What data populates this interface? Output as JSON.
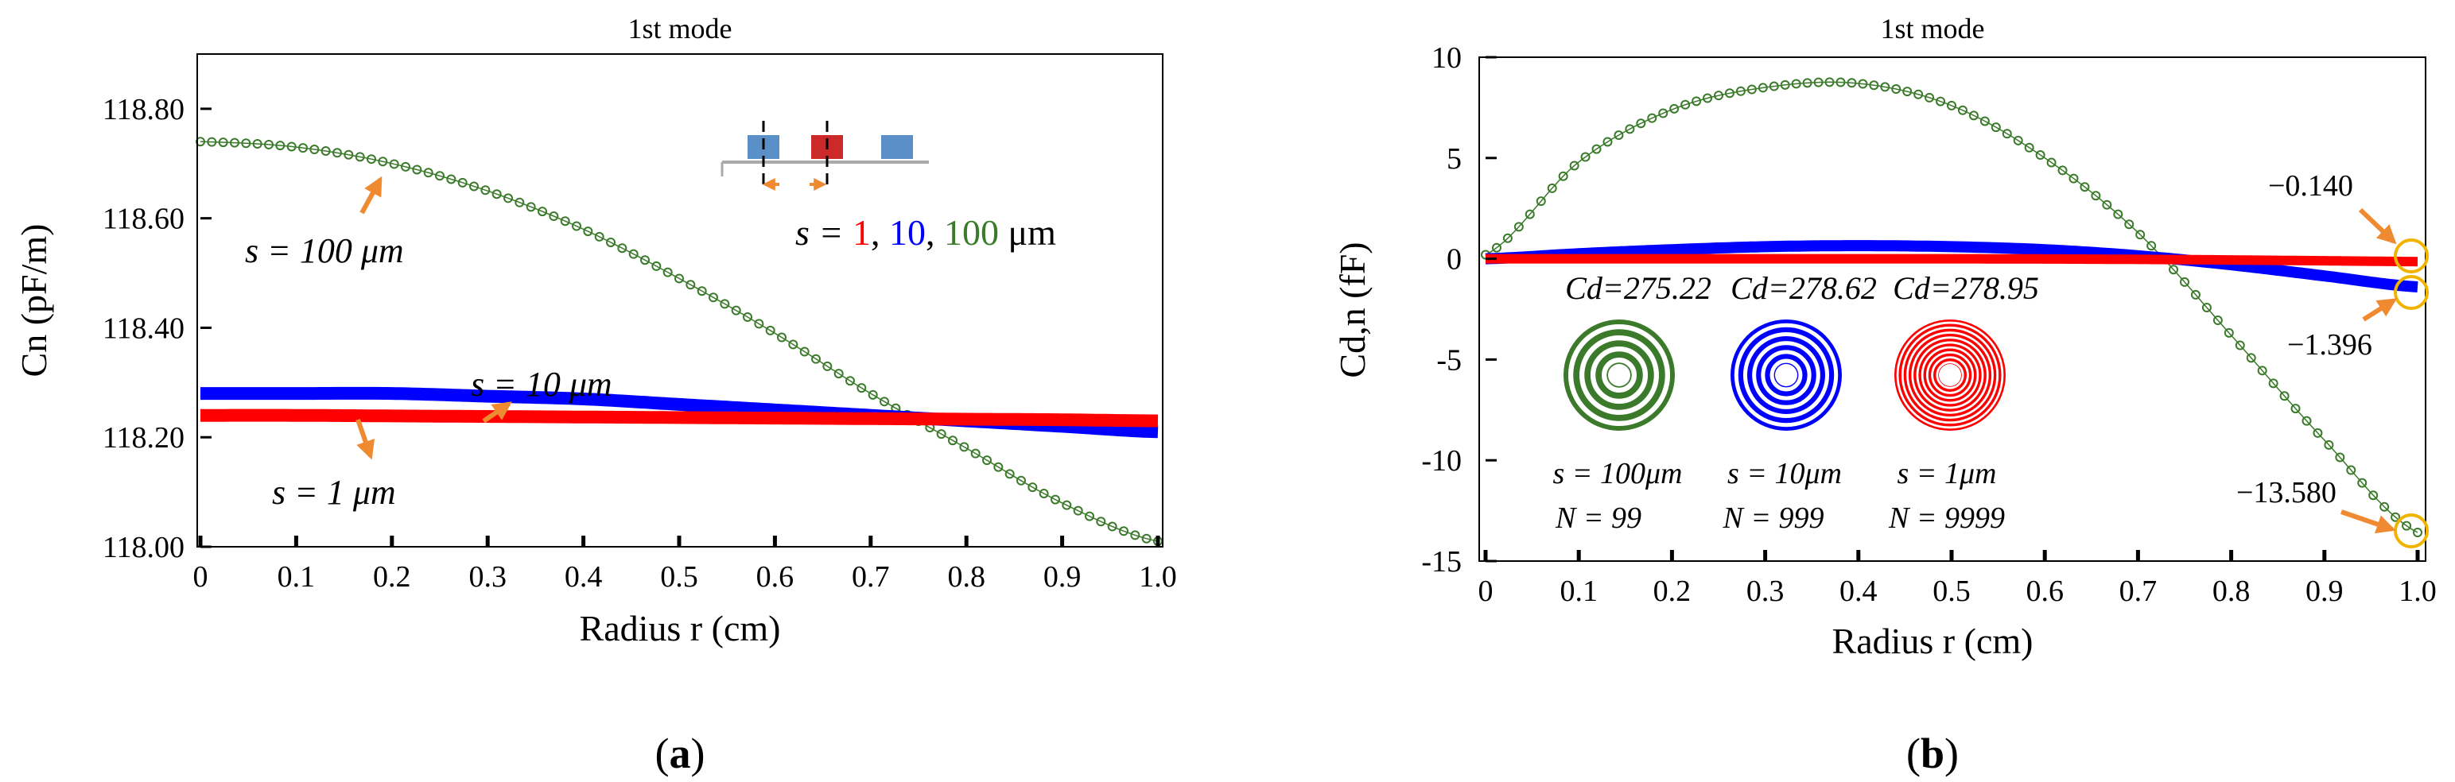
{
  "chart_data": [
    {
      "type": "line",
      "panel_label": "a",
      "title": "1st mode",
      "xlabel": "Radius r (cm)",
      "ylabel": "Cn (pF/m)",
      "xlim": [
        0,
        1.0
      ],
      "ylim": [
        118.0,
        118.9
      ],
      "x_ticks": [
        "0",
        "0.1",
        "0.2",
        "0.3",
        "0.4",
        "0.5",
        "0.6",
        "0.7",
        "0.8",
        "0.9",
        "1.0"
      ],
      "y_ticks": [
        "118.00",
        "118.20",
        "118.40",
        "118.60",
        "118.80"
      ],
      "y_tick_values": [
        118.0,
        118.2,
        118.4,
        118.6,
        118.8
      ],
      "grid": false,
      "series": [
        {
          "name": "s = 100 μm",
          "style": "markers",
          "color": "#3a7a2a",
          "x": [
            0,
            0.1,
            0.2,
            0.3,
            0.4,
            0.5,
            0.6,
            0.7,
            0.8,
            0.9,
            1.0
          ],
          "y": [
            118.74,
            118.73,
            118.7,
            118.65,
            118.58,
            118.49,
            118.39,
            118.28,
            118.18,
            118.08,
            118.01
          ]
        },
        {
          "name": "s = 10 μm",
          "style": "line",
          "color": "#0000ff",
          "x": [
            0,
            0.1,
            0.2,
            0.3,
            0.4,
            0.5,
            0.6,
            0.7,
            0.8,
            0.9,
            1.0
          ],
          "y": [
            118.28,
            118.28,
            118.28,
            118.275,
            118.27,
            118.26,
            118.25,
            118.24,
            118.23,
            118.22,
            118.21
          ]
        },
        {
          "name": "s = 1 μm",
          "style": "line",
          "color": "#ff0000",
          "x": [
            0,
            0.1,
            0.2,
            0.3,
            0.4,
            0.5,
            0.6,
            0.7,
            0.8,
            0.9,
            1.0
          ],
          "y": [
            118.24,
            118.24,
            118.239,
            118.238,
            118.237,
            118.236,
            118.235,
            118.234,
            118.233,
            118.232,
            118.23
          ]
        }
      ],
      "annotations": {
        "legend_prefix": "s = ",
        "legend_v1": "1",
        "legend_v2": "10",
        "legend_v3": "100",
        "legend_sep": ", ",
        "legend_unit": " μm",
        "label_green": "s = 100 μm",
        "label_blue": "s = 10 μm",
        "label_red": "s = 1 μm"
      },
      "colors": {
        "blue_block": "#5a8fc8",
        "red_block": "#cc2a2a",
        "arrow": "#f08a30"
      }
    },
    {
      "type": "line",
      "panel_label": "b",
      "title": "1st mode",
      "xlabel": "Radius r (cm)",
      "ylabel": "Cd,n (fF)",
      "xlim": [
        0,
        1.0
      ],
      "ylim": [
        -15,
        10
      ],
      "x_ticks": [
        "0",
        "0.1",
        "0.2",
        "0.3",
        "0.4",
        "0.5",
        "0.6",
        "0.7",
        "0.8",
        "0.9",
        "1.0"
      ],
      "y_ticks": [
        "10",
        "5",
        "0",
        "-5",
        "-10",
        "-15"
      ],
      "y_tick_values": [
        10,
        5,
        0,
        -5,
        -10,
        -15
      ],
      "grid": false,
      "series": [
        {
          "name": "s = 100 μm",
          "style": "markers",
          "color": "#3a7a2a",
          "x": [
            0,
            0.1,
            0.2,
            0.3,
            0.4,
            0.5,
            0.6,
            0.7,
            0.8,
            0.9,
            1.0
          ],
          "y": [
            0.2,
            4.8,
            7.4,
            8.5,
            8.7,
            7.6,
            5.0,
            1.3,
            -3.8,
            -9.0,
            -13.58
          ]
        },
        {
          "name": "s = 10 μm",
          "style": "line",
          "color": "#0000ff",
          "x": [
            0,
            0.1,
            0.2,
            0.3,
            0.4,
            0.5,
            0.6,
            0.7,
            0.8,
            0.9,
            1.0
          ],
          "y": [
            0.0,
            0.25,
            0.45,
            0.6,
            0.65,
            0.6,
            0.45,
            0.15,
            -0.3,
            -0.85,
            -1.396
          ]
        },
        {
          "name": "s = 1 μm",
          "style": "line",
          "color": "#ff0000",
          "x": [
            0,
            0.1,
            0.2,
            0.3,
            0.4,
            0.5,
            0.6,
            0.7,
            0.8,
            0.9,
            1.0
          ],
          "y": [
            0.0,
            0.0,
            0.0,
            0.0,
            0.0,
            0.0,
            -0.01,
            -0.03,
            -0.06,
            -0.1,
            -0.14
          ]
        }
      ],
      "annotations": {
        "val_red": "−0.140",
        "val_blue": "−1.396",
        "val_green": "−13.580",
        "cd_green": "Cd=275.22",
        "cd_blue": "Cd=278.62",
        "cd_red": "Cd=278.95",
        "s_green": "s = 100μm",
        "s_blue": "s = 10μm",
        "s_red": "s = 1μm",
        "n_green": "N = 99",
        "n_blue": "N = 999",
        "n_red": "N = 9999"
      },
      "colors": {
        "circle": "#f0b400",
        "arrow": "#f08a30"
      }
    }
  ]
}
